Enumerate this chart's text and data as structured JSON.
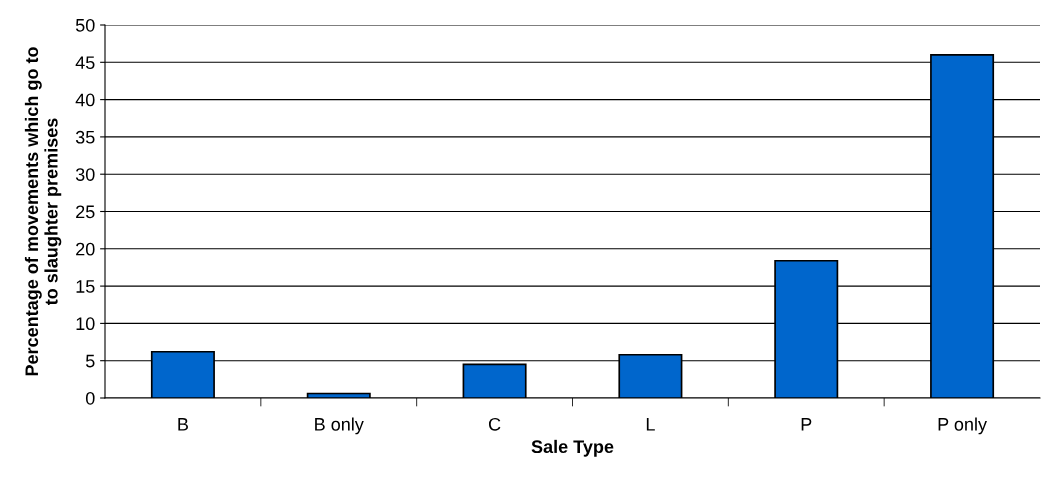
{
  "chart_data": {
    "type": "bar",
    "xlabel": "Sale Type",
    "ylabel": "Percentage of movements which go to\nto slaughter premises",
    "categories": [
      "B",
      "B only",
      "C",
      "L",
      "P",
      "P only"
    ],
    "values": [
      6.2,
      0.6,
      4.5,
      5.8,
      18.4,
      46.0
    ],
    "color": "#0066cc",
    "ylim": [
      0,
      50
    ],
    "yticks": [
      0,
      5,
      10,
      15,
      20,
      25,
      30,
      35,
      40,
      45,
      50
    ],
    "grid": "y",
    "legend": false
  }
}
